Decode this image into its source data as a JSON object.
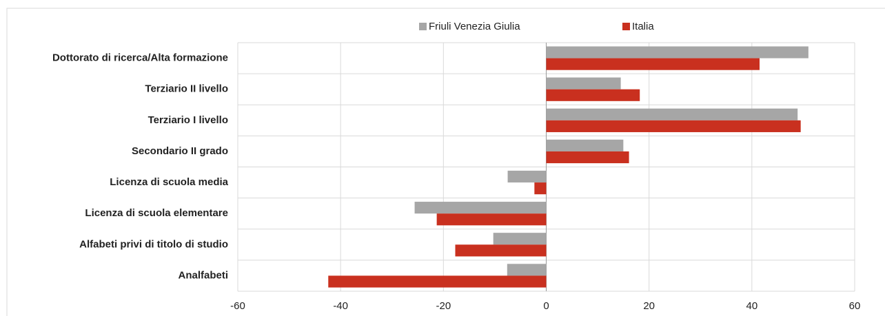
{
  "chart_data": {
    "type": "hbar",
    "categories": [
      "Dottorato di ricerca/Alta formazione",
      "Terziario II livello",
      "Terziario I livello",
      "Secondario II grado",
      "Licenza di scuola media",
      "Licenza di scuola elementare",
      "Alfabeti privi di titolo di studio",
      "Analfabeti"
    ],
    "series": [
      {
        "name": "Friuli Venezia Giulia",
        "color": "#a6a6a6",
        "values": [
          51,
          14.5,
          48.9,
          15,
          -7.5,
          -25.6,
          -10.3,
          -7.6
        ]
      },
      {
        "name": "Italia",
        "color": "#c9301f",
        "values": [
          41.5,
          18.2,
          49.5,
          16.1,
          -2.3,
          -21.3,
          -17.7,
          -42.4
        ]
      }
    ],
    "xlim": [
      -60,
      60
    ],
    "xticks": [
      -60,
      -40,
      -20,
      0,
      20,
      40,
      60
    ],
    "grid": true,
    "legend": "top"
  }
}
